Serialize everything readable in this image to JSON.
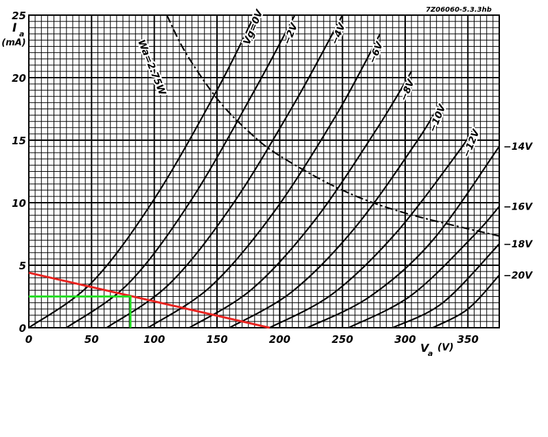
{
  "chart_data": {
    "type": "line",
    "note": "7Z06060-5.3.3hb",
    "ylabel": "I",
    "ylabel_sub": "a",
    "yunit": "(mA)",
    "xlabel": "V",
    "xlabel_sub": "a",
    "xunit": "(V)",
    "xlim": [
      0,
      375
    ],
    "ylim": [
      0,
      25
    ],
    "xticks": [
      0,
      50,
      100,
      150,
      200,
      250,
      300,
      350
    ],
    "yticks": [
      0,
      5,
      10,
      15,
      20,
      25
    ],
    "grid": true,
    "minor_grid": {
      "x": 5,
      "y": 0.5
    },
    "series": [
      {
        "name": "Vg=0V",
        "color": "#000000",
        "x": [
          0,
          50,
          100,
          150,
          180
        ],
        "values": [
          0,
          3.6,
          10.3,
          19,
          25
        ]
      },
      {
        "name": "−2V",
        "color": "#000000",
        "x": [
          30,
          80,
          130,
          180,
          212
        ],
        "values": [
          0,
          3.6,
          10.3,
          19,
          25
        ]
      },
      {
        "name": "−4V",
        "color": "#000000",
        "x": [
          62,
          112,
          162,
          212,
          250
        ],
        "values": [
          0,
          3.5,
          9.8,
          18,
          25
        ]
      },
      {
        "name": "−6V",
        "color": "#000000",
        "x": [
          95,
          145,
          195,
          245,
          280
        ],
        "values": [
          0,
          3.3,
          9.2,
          17,
          23.5
        ]
      },
      {
        "name": "−8V",
        "color": "#000000",
        "x": [
          128,
          178,
          228,
          278,
          305
        ],
        "values": [
          0,
          3.1,
          8.6,
          16,
          20.5
        ]
      },
      {
        "name": "−10V",
        "color": "#000000",
        "x": [
          160,
          210,
          260,
          310,
          328
        ],
        "values": [
          0,
          2.9,
          8,
          15,
          18
        ]
      },
      {
        "name": "−12V",
        "color": "#000000",
        "x": [
          192,
          242,
          292,
          342,
          355
        ],
        "values": [
          0,
          2.7,
          7.5,
          14,
          16
        ]
      },
      {
        "name": "−14V",
        "color": "#000000",
        "x": [
          222,
          272,
          322,
          375
        ],
        "values": [
          0,
          2.5,
          7,
          14.5
        ]
      },
      {
        "name": "−16V",
        "color": "#000000",
        "x": [
          255,
          305,
          355,
          375
        ],
        "values": [
          0,
          2.6,
          7.4,
          9.7
        ]
      },
      {
        "name": "−18V",
        "color": "#000000",
        "x": [
          290,
          330,
          375
        ],
        "values": [
          0,
          2,
          6.7
        ]
      },
      {
        "name": "−20V",
        "color": "#000000",
        "x": [
          322,
          350,
          375
        ],
        "values": [
          0,
          1.5,
          4.2
        ]
      },
      {
        "name": "Wa=2.75W",
        "color": "#000000",
        "dash": "dashdot",
        "x": [
          110,
          125,
          150,
          175,
          200,
          250,
          300,
          375
        ],
        "values": [
          25,
          22,
          18.33,
          15.71,
          13.75,
          11,
          9.17,
          7.33
        ]
      }
    ],
    "annotation_lines": [
      {
        "color": "#e8231f",
        "x": [
          0,
          192
        ],
        "values": [
          4.4,
          0
        ]
      },
      {
        "color": "#22dd22",
        "x": [
          0,
          81,
          81
        ],
        "values": [
          2.5,
          2.5,
          0
        ]
      }
    ]
  }
}
